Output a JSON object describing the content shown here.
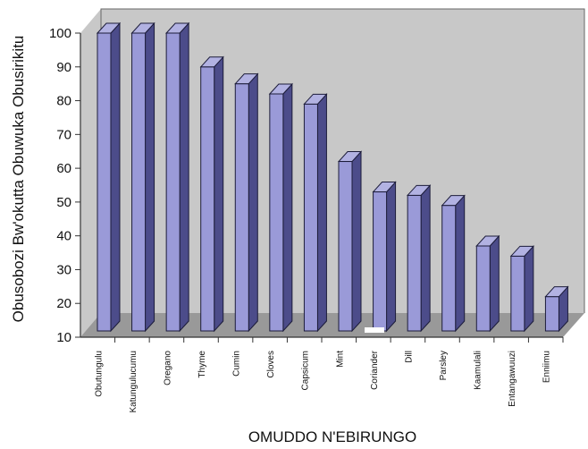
{
  "chart_data": {
    "type": "bar",
    "title": "",
    "xlabel": "OMUDDO N'EBIRUNGO",
    "ylabel": "Obusobozi Bw'okutta Obuwuka Obusirikitu",
    "categories": [
      "Obutungulu",
      "Katungulucumu",
      "Oregano",
      "Thyme",
      "Cumin",
      "Cloves",
      "Capsicum",
      "Mint",
      "Coriander",
      "Dill",
      "Parsley",
      "Kaamulali",
      "Entangawuuzi",
      "Enniimu"
    ],
    "values": [
      100,
      100,
      100,
      90,
      85,
      82,
      79,
      62,
      53,
      52,
      49,
      37,
      34,
      22
    ],
    "ylim": [
      10,
      100
    ],
    "yticks": [
      "10",
      "20",
      "30",
      "40",
      "50",
      "60",
      "70",
      "80",
      "90",
      "100"
    ],
    "grid": false,
    "legend": "none",
    "style": "3d-bar",
    "colors": {
      "bar_front": "#9a9ad8",
      "bar_top": "#b2b2e2",
      "bar_side": "#4c4c8a",
      "bar_outline": "#1c1c3a",
      "wall": "#c8c8c8",
      "floor": "#999999",
      "frame": "#555555"
    }
  }
}
